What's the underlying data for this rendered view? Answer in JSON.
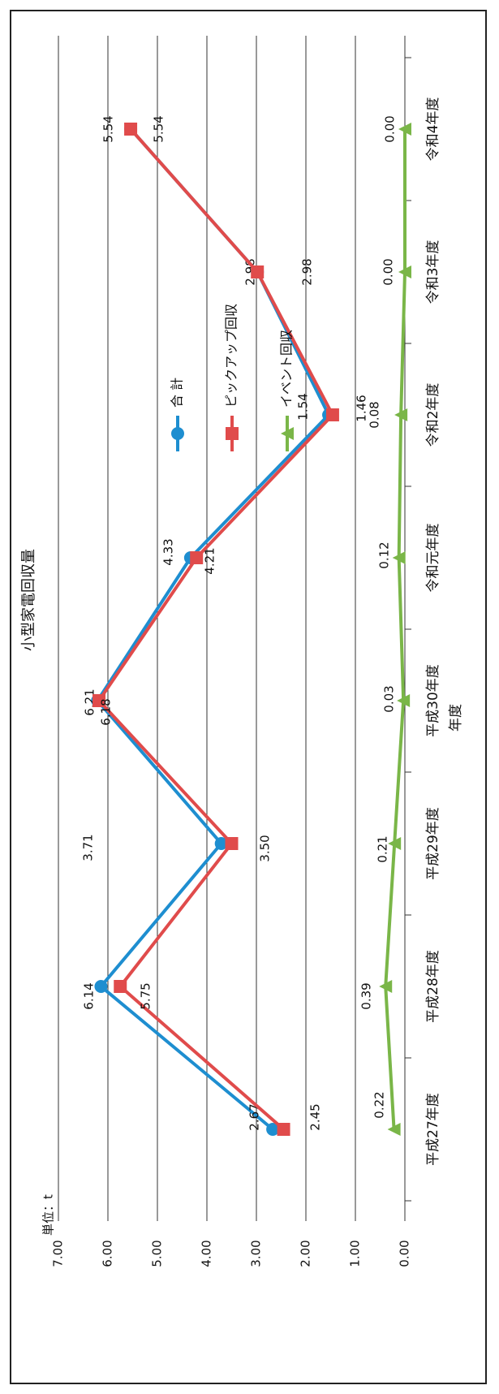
{
  "chart_data": {
    "type": "line",
    "title": "小型家電回収量",
    "xlabel": "年度",
    "unit_label": "単位：t",
    "categories": [
      "平成27年度",
      "平成28年度",
      "平成29年度",
      "平成30年度",
      "令和元年度",
      "令和2年度",
      "令和3年度",
      "令和4年度"
    ],
    "ylim": [
      0,
      7
    ],
    "yticks": [
      "0.00",
      "1.00",
      "2.00",
      "3.00",
      "4.00",
      "5.00",
      "6.00",
      "7.00"
    ],
    "grid": true,
    "legend_position": "upper-right",
    "series": [
      {
        "name": "合 計",
        "color": "#1e8ed0",
        "marker": "circle",
        "values": [
          2.67,
          6.14,
          3.71,
          6.21,
          4.33,
          1.54,
          2.98,
          5.54
        ],
        "labels": [
          "2.67",
          "6.14",
          "3.71",
          "6.21",
          "4.33",
          "1.54",
          "2.98",
          "5.54"
        ]
      },
      {
        "name": "ピックアップ回収",
        "color": "#e04b4b",
        "marker": "square",
        "values": [
          2.45,
          5.75,
          3.5,
          6.18,
          4.21,
          1.46,
          2.98,
          5.54
        ],
        "labels": [
          "2.45",
          "5.75",
          "3.50",
          "6.18",
          "4.21",
          "1.46",
          "2.98",
          "5.54"
        ]
      },
      {
        "name": "イベント回収",
        "color": "#7ab648",
        "marker": "triangle",
        "values": [
          0.22,
          0.39,
          0.21,
          0.03,
          0.12,
          0.08,
          0.0,
          0.0
        ],
        "labels": [
          "0.22",
          "0.39",
          "0.21",
          "0.03",
          "0.12",
          "0.08",
          "0.00",
          "0.00"
        ]
      }
    ]
  }
}
